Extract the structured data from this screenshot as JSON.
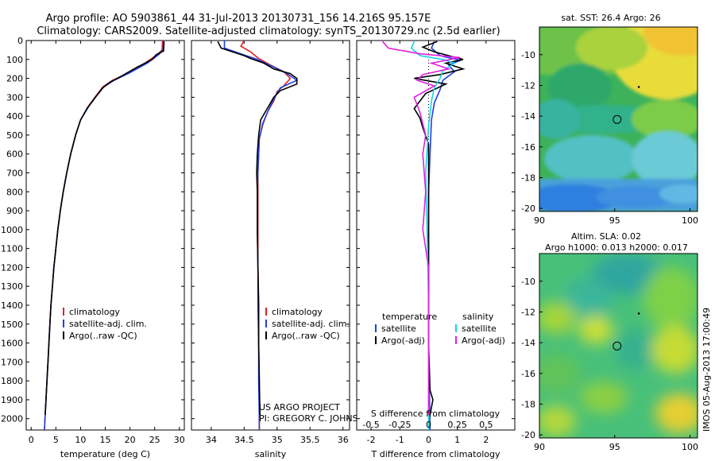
{
  "title": {
    "line1": "Argo profile: AO 5903861_44 31-Jul-2013 20130731_156 14.216S 95.157E",
    "line2": "Climatology: CARS2009. Satellite-adjusted climatology: synTS_20130729.nc (2.5d earlier)"
  },
  "colors": {
    "clim": "#e02020",
    "satadj": "#1f3fe0",
    "argo": "#000000",
    "sat_salinity": "#19d4e6",
    "argo_salinity": "#e020e0"
  },
  "side_text": "IMOS 05-Aug-2013 17:00:49",
  "credits": {
    "line1": "US ARGO PROJECT",
    "line2": "PI: GREGORY C. JOHNSON"
  },
  "chart_data": [
    {
      "type": "line",
      "name": "temperature-profile",
      "xlabel": "temperature (deg C)",
      "ylabel": "depth",
      "xlim": [
        -1,
        31
      ],
      "ylim": [
        2060,
        0
      ],
      "xticks": [
        0,
        5,
        10,
        15,
        20,
        25,
        30
      ],
      "yticks": [
        0,
        100,
        200,
        300,
        400,
        500,
        600,
        700,
        800,
        900,
        1000,
        1100,
        1200,
        1300,
        1400,
        1500,
        1600,
        1700,
        1800,
        1900,
        2000
      ],
      "legend": [
        "climatology",
        "satellite-adj. clim.",
        "Argo(..raw -QC)"
      ],
      "series": [
        {
          "name": "climatology",
          "color": "clim",
          "points": [
            [
              26.6,
              0
            ],
            [
              26.5,
              50
            ],
            [
              25.5,
              75
            ],
            [
              23,
              120
            ],
            [
              19.5,
              175
            ],
            [
              16.5,
              210
            ],
            [
              14.5,
              245
            ],
            [
              13.2,
              290
            ],
            [
              11.5,
              350
            ],
            [
              10,
              420
            ],
            [
              9,
              500
            ],
            [
              8,
              600
            ],
            [
              7.2,
              700
            ],
            [
              6.5,
              800
            ],
            [
              5.9,
              900
            ],
            [
              5.4,
              1000
            ],
            [
              5,
              1100
            ],
            [
              4.6,
              1200
            ],
            [
              4.3,
              1300
            ],
            [
              4,
              1400
            ],
            [
              3.8,
              1500
            ],
            [
              3.6,
              1600
            ],
            [
              3.4,
              1700
            ],
            [
              3.2,
              1800
            ],
            [
              3,
              1900
            ],
            [
              2.8,
              2000
            ],
            [
              2.7,
              2060
            ]
          ]
        },
        {
          "name": "satellite-adj. clim.",
          "color": "satadj",
          "points": [
            [
              26.8,
              0
            ],
            [
              26.7,
              50
            ],
            [
              25.8,
              75
            ],
            [
              23.5,
              120
            ],
            [
              20,
              170
            ],
            [
              16.8,
              210
            ],
            [
              14.7,
              245
            ],
            [
              13.3,
              290
            ],
            [
              11.6,
              350
            ],
            [
              10,
              420
            ],
            [
              9,
              500
            ],
            [
              8,
              600
            ],
            [
              7.2,
              700
            ],
            [
              6.5,
              800
            ],
            [
              5.9,
              900
            ],
            [
              5.4,
              1000
            ],
            [
              5,
              1100
            ],
            [
              4.6,
              1200
            ],
            [
              4.3,
              1300
            ],
            [
              4,
              1400
            ],
            [
              3.8,
              1500
            ],
            [
              3.6,
              1600
            ],
            [
              3.4,
              1700
            ],
            [
              3.2,
              1800
            ],
            [
              3,
              1900
            ],
            [
              2.8,
              2000
            ],
            [
              2.7,
              2060
            ]
          ]
        },
        {
          "name": "Argo(..raw -QC)",
          "color": "argo",
          "points": [
            [
              26.9,
              5
            ],
            [
              26.8,
              55
            ],
            [
              25.3,
              75
            ],
            [
              24.5,
              100
            ],
            [
              21.5,
              140
            ],
            [
              18.5,
              185
            ],
            [
              16,
              220
            ],
            [
              14.5,
              250
            ],
            [
              13,
              300
            ],
            [
              11.3,
              360
            ],
            [
              10,
              420
            ],
            [
              9,
              500
            ],
            [
              8,
              600
            ],
            [
              7.2,
              700
            ],
            [
              6.5,
              800
            ],
            [
              5.9,
              900
            ],
            [
              5.4,
              1000
            ],
            [
              5,
              1100
            ],
            [
              4.6,
              1200
            ],
            [
              4.3,
              1300
            ],
            [
              4,
              1400
            ],
            [
              3.8,
              1500
            ],
            [
              3.6,
              1600
            ],
            [
              3.4,
              1700
            ],
            [
              3.2,
              1800
            ],
            [
              3,
              1900
            ],
            [
              2.85,
              1980
            ]
          ]
        }
      ]
    },
    {
      "type": "line",
      "name": "salinity-profile",
      "xlabel": "salinity",
      "xlim": [
        33.7,
        36.1
      ],
      "ylim": [
        2060,
        0
      ],
      "xticks": [
        34,
        34.5,
        35,
        35.5,
        36
      ],
      "legend": [
        "climatology",
        "satellite-adj. clim.",
        "Argo(..raw -QC)"
      ],
      "series": [
        {
          "name": "climatology",
          "color": "clim",
          "points": [
            [
              34.5,
              0
            ],
            [
              34.45,
              30
            ],
            [
              34.6,
              60
            ],
            [
              34.7,
              90
            ],
            [
              34.9,
              130
            ],
            [
              35.1,
              165
            ],
            [
              35.2,
              200
            ],
            [
              35.1,
              240
            ],
            [
              35,
              270
            ],
            [
              34.95,
              320
            ],
            [
              34.85,
              380
            ],
            [
              34.78,
              450
            ],
            [
              34.73,
              520
            ],
            [
              34.72,
              600
            ],
            [
              34.71,
              700
            ],
            [
              34.71,
              800
            ],
            [
              34.71,
              900
            ],
            [
              34.71,
              1000
            ],
            [
              34.71,
              1200
            ],
            [
              34.72,
              1400
            ],
            [
              34.72,
              1600
            ],
            [
              34.73,
              1800
            ],
            [
              34.73,
              2000
            ],
            [
              34.73,
              2060
            ]
          ]
        },
        {
          "name": "satellite-adj. clim.",
          "color": "satadj",
          "points": [
            [
              34.2,
              0
            ],
            [
              34.2,
              40
            ],
            [
              34.45,
              70
            ],
            [
              34.7,
              100
            ],
            [
              34.95,
              140
            ],
            [
              35.15,
              175
            ],
            [
              35.3,
              210
            ],
            [
              35.05,
              250
            ],
            [
              34.98,
              290
            ],
            [
              34.88,
              360
            ],
            [
              34.78,
              440
            ],
            [
              34.73,
              520
            ],
            [
              34.72,
              600
            ],
            [
              34.71,
              700
            ],
            [
              34.7,
              800
            ],
            [
              34.7,
              1000
            ],
            [
              34.71,
              1200
            ],
            [
              34.71,
              1400
            ],
            [
              34.72,
              1600
            ],
            [
              34.72,
              1800
            ],
            [
              34.73,
              2000
            ],
            [
              34.73,
              2060
            ]
          ]
        },
        {
          "name": "Argo(..raw -QC)",
          "color": "argo",
          "points": [
            [
              34.1,
              5
            ],
            [
              34.15,
              40
            ],
            [
              34.5,
              80
            ],
            [
              34.6,
              95
            ],
            [
              34.8,
              120
            ],
            [
              34.95,
              150
            ],
            [
              35.2,
              175
            ],
            [
              35.3,
              200
            ],
            [
              35.3,
              230
            ],
            [
              35.05,
              265
            ],
            [
              34.95,
              300
            ],
            [
              34.85,
              360
            ],
            [
              34.75,
              420
            ],
            [
              34.72,
              500
            ],
            [
              34.7,
              600
            ],
            [
              34.69,
              700
            ],
            [
              34.7,
              800
            ],
            [
              34.7,
              1000
            ],
            [
              34.71,
              1200
            ],
            [
              34.72,
              1400
            ],
            [
              34.72,
              1600
            ],
            [
              34.73,
              1800
            ],
            [
              34.74,
              1980
            ]
          ]
        }
      ]
    },
    {
      "type": "line",
      "name": "difference-profile",
      "xlabel": "T difference from climatology",
      "xlabel_top": "S difference from climatology",
      "xlim": [
        -2.5,
        3
      ],
      "ylim": [
        2060,
        0
      ],
      "xticks": [
        -2,
        -1,
        0,
        1,
        2
      ],
      "sticks": [
        -0.5,
        -0.25,
        0,
        0.25,
        0.5
      ],
      "sticks_labels": [
        "-0.5",
        "-0.25",
        "0",
        "0.25",
        "0.5"
      ],
      "legend_headers": [
        "temperature",
        "salinity"
      ],
      "legend": [
        "satellite",
        "Argo(-adj)",
        "satellite",
        "Argo(-adj)"
      ],
      "series": [
        {
          "name": "T satellite",
          "color": "satadj",
          "points": [
            [
              0.2,
              5
            ],
            [
              0.1,
              40
            ],
            [
              0.4,
              80
            ],
            [
              1.1,
              105
            ],
            [
              0.7,
              130
            ],
            [
              0.9,
              165
            ],
            [
              0.5,
              210
            ],
            [
              0.4,
              260
            ],
            [
              0.2,
              330
            ],
            [
              0.1,
              420
            ],
            [
              0.05,
              600
            ],
            [
              0,
              800
            ],
            [
              0,
              1200
            ],
            [
              0,
              1600
            ],
            [
              0.05,
              2060
            ]
          ]
        },
        {
          "name": "T Argo(-adj)",
          "color": "argo",
          "points": [
            [
              0.3,
              5
            ],
            [
              -0.2,
              35
            ],
            [
              0.2,
              60
            ],
            [
              1.2,
              100
            ],
            [
              0.6,
              120
            ],
            [
              1.2,
              150
            ],
            [
              0.4,
              180
            ],
            [
              -0.5,
              200
            ],
            [
              0.6,
              230
            ],
            [
              -0.1,
              280
            ],
            [
              -0.5,
              360
            ],
            [
              -0.3,
              410
            ],
            [
              -0.2,
              460
            ],
            [
              0,
              550
            ],
            [
              0,
              800
            ],
            [
              0,
              1200
            ],
            [
              0,
              1600
            ],
            [
              0.05,
              1850
            ],
            [
              0.15,
              1900
            ],
            [
              0.05,
              1980
            ]
          ]
        },
        {
          "name": "S satellite",
          "color": "sat_salinity",
          "points": [
            [
              -0.5,
              5
            ],
            [
              -0.6,
              40
            ],
            [
              -0.3,
              80
            ],
            [
              0.5,
              100
            ],
            [
              0.9,
              120
            ],
            [
              0.5,
              160
            ],
            [
              0.4,
              200
            ],
            [
              0.2,
              250
            ],
            [
              0.1,
              320
            ],
            [
              0,
              450
            ],
            [
              -0.1,
              700
            ],
            [
              -0.05,
              1000
            ],
            [
              0,
              1400
            ],
            [
              0,
              1800
            ],
            [
              0,
              2060
            ]
          ]
        },
        {
          "name": "S Argo(-adj)",
          "color": "argo_salinity",
          "points": [
            [
              -1.6,
              5
            ],
            [
              -1.4,
              40
            ],
            [
              -0.3,
              70
            ],
            [
              1.1,
              90
            ],
            [
              0.1,
              120
            ],
            [
              0.7,
              150
            ],
            [
              -0.2,
              180
            ],
            [
              -0.4,
              210
            ],
            [
              0.2,
              240
            ],
            [
              -0.5,
              300
            ],
            [
              -0.3,
              380
            ],
            [
              -0.1,
              500
            ],
            [
              -0.2,
              600
            ],
            [
              -0.1,
              800
            ],
            [
              -0.2,
              1000
            ],
            [
              0,
              1200
            ],
            [
              0,
              1600
            ],
            [
              0,
              1800
            ],
            [
              0,
              1980
            ]
          ]
        }
      ]
    },
    {
      "type": "heatmap",
      "name": "sst-map",
      "title": "sat. SST: 26.4 Argo: 26",
      "xlim": [
        90,
        100.5
      ],
      "ylim": [
        -20.2,
        -8.2
      ],
      "xticks": [
        90,
        95,
        100
      ],
      "yticks": [
        -10,
        -12,
        -14,
        -16,
        -18,
        -20
      ],
      "argo_position": [
        95.157,
        -14.216
      ],
      "marker_dot": [
        96.6,
        -12.1
      ]
    },
    {
      "type": "heatmap",
      "name": "sla-map",
      "title": "Altim. SLA: 0.02",
      "subtitle": "Argo h1000: 0.013 h2000: 0.017",
      "xlim": [
        90,
        100.5
      ],
      "ylim": [
        -20.2,
        -8.2
      ],
      "xticks": [
        90,
        95,
        100
      ],
      "yticks": [
        -10,
        -12,
        -14,
        -16,
        -18,
        -20
      ],
      "argo_position": [
        95.157,
        -14.216
      ],
      "marker_dot": [
        96.6,
        -12.1
      ]
    }
  ]
}
